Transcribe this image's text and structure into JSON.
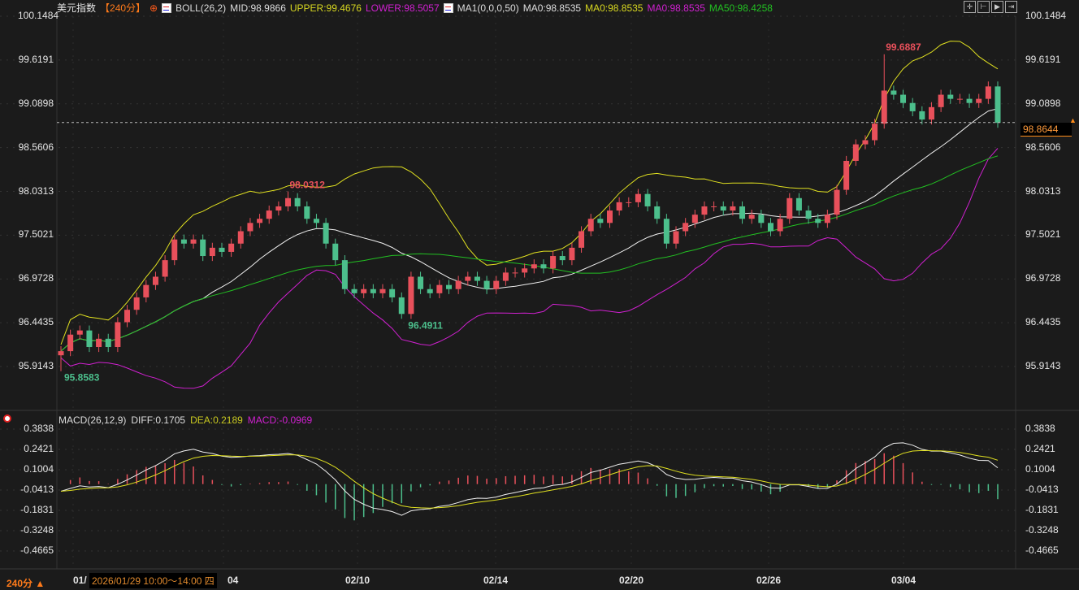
{
  "header": {
    "title": "美元指数",
    "period": "【240分】",
    "period_icon": "crosshair-circle-icon",
    "boll": "BOLL(26,2)",
    "mid": "MID:98.9866",
    "upper": "UPPER:99.4676",
    "lower": "LOWER:98.5057",
    "ma": "MA1(0,0,0,50)",
    "ma0a": "MA0:98.8535",
    "ma0b": "MA0:98.8535",
    "ma0c": "MA0:98.8535",
    "ma50": "MA50:98.4258"
  },
  "tools": [
    "move-icon",
    "fit-left-icon",
    "fit-right-icon",
    "scroll-end-icon"
  ],
  "macd_header": {
    "name": "MACD(26,12,9)",
    "diff": "DIFF:0.1705",
    "dea": "DEA:0.2189",
    "macd": "MACD:-0.0969"
  },
  "current_price": "98.8644",
  "period_label": "240分 ▲",
  "tooltip": "2026/01/29 10:00～14:00 四",
  "colors": {
    "up": "#e8505b",
    "down": "#4cbf8c",
    "mid": "#f0f0f0",
    "upper": "#e0e020",
    "lower": "#d020d0",
    "ma50": "#22c022",
    "diff": "#f0f0f0",
    "dea": "#e0e020"
  },
  "chart_data": {
    "type": "candlestick",
    "price_ticks": [
      "100.1484",
      "99.6191",
      "99.0898",
      "98.5606",
      "98.0313",
      "97.5021",
      "96.9728",
      "96.4435",
      "95.9143"
    ],
    "macd_ticks": [
      "0.3838",
      "0.2421",
      "0.1004",
      "-0.0413",
      "-0.1831",
      "-0.3248",
      "-0.4665"
    ],
    "x_labels": [
      "01/",
      "04",
      "02/10",
      "02/14",
      "02/20",
      "02/26",
      "03/04"
    ],
    "annotations": {
      "max": "99.6887",
      "start_low": "95.8583",
      "high1": "98.0312",
      "low1": "96.4911"
    },
    "ylim": [
      95.9143,
      100.1484
    ],
    "close": [
      96.1,
      96.3,
      96.35,
      96.15,
      96.25,
      96.15,
      96.45,
      96.6,
      96.75,
      96.9,
      97.0,
      97.2,
      97.45,
      97.4,
      97.45,
      97.25,
      97.35,
      97.3,
      97.4,
      97.55,
      97.65,
      97.7,
      97.8,
      97.85,
      97.95,
      97.85,
      97.7,
      97.65,
      97.4,
      97.2,
      96.85,
      96.8,
      96.85,
      96.8,
      96.85,
      96.75,
      96.55,
      97.0,
      96.85,
      96.8,
      96.9,
      96.85,
      96.95,
      97.0,
      96.95,
      96.85,
      96.95,
      97.05,
      97.05,
      97.1,
      97.15,
      97.1,
      97.25,
      97.2,
      97.35,
      97.55,
      97.7,
      97.65,
      97.8,
      97.9,
      97.9,
      98.0,
      97.85,
      97.7,
      97.4,
      97.55,
      97.65,
      97.75,
      97.85,
      97.85,
      97.8,
      97.85,
      97.7,
      97.75,
      97.65,
      97.55,
      97.7,
      97.95,
      97.8,
      97.7,
      97.65,
      97.75,
      98.05,
      98.4,
      98.6,
      98.65,
      98.85,
      99.25,
      99.2,
      99.1,
      99.0,
      98.9,
      99.05,
      99.2,
      99.15,
      99.15,
      99.1,
      99.15,
      99.3,
      98.86
    ]
  }
}
